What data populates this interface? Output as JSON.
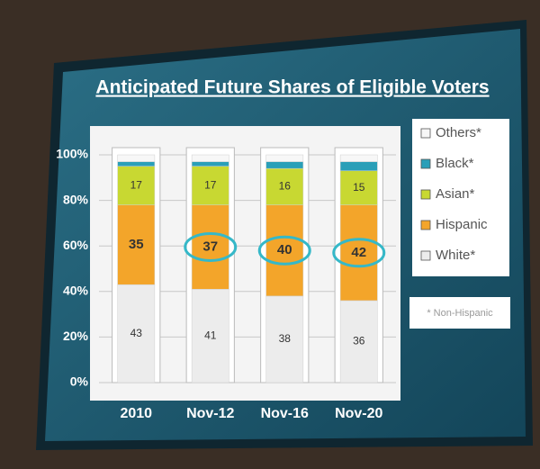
{
  "chart_data": {
    "type": "stacked_bar",
    "title": "Anticipated Future Shares of Eligible Voters",
    "categories": [
      "2010",
      "Nov-12",
      "Nov-16",
      "Nov-20"
    ],
    "series": [
      {
        "name": "White*",
        "color": "#ececec",
        "values": [
          43,
          41,
          38,
          36
        ]
      },
      {
        "name": "Hispanic",
        "color": "#f3a52a",
        "values": [
          35,
          37,
          40,
          42
        ]
      },
      {
        "name": "Asian*",
        "color": "#c8d832",
        "values": [
          17,
          17,
          16,
          15
        ]
      },
      {
        "name": "Black*",
        "color": "#2a9fb8",
        "values": [
          2,
          2,
          3,
          4
        ]
      },
      {
        "name": "Others*",
        "color": "#f7f7f7",
        "values": [
          3,
          3,
          3,
          3
        ]
      }
    ],
    "ylim": [
      0,
      100
    ],
    "yticks": [
      {
        "value": 0,
        "label": "0%"
      },
      {
        "value": 20,
        "label": "20%"
      },
      {
        "value": 40,
        "label": "40%"
      },
      {
        "value": 60,
        "label": "60%"
      },
      {
        "value": 80,
        "label": "80%"
      },
      {
        "value": 100,
        "label": "100%"
      }
    ],
    "grid": true,
    "footnote": "* Non-Hispanic"
  }
}
